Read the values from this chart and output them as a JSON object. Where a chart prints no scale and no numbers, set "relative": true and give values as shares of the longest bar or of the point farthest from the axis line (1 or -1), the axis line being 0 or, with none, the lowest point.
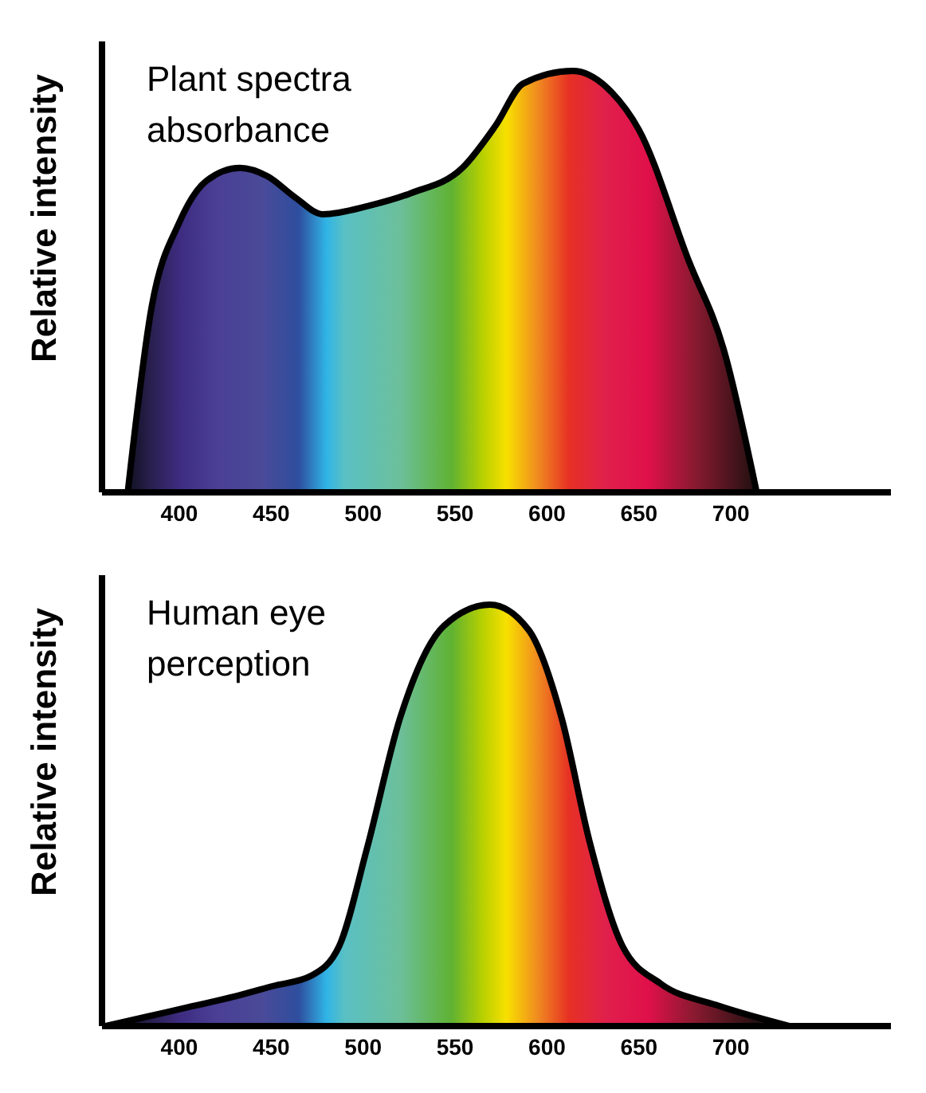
{
  "chart_data": [
    {
      "type": "area",
      "title": "Plant spectra absorbance",
      "ylabel": "Relative intensity",
      "relative": true,
      "xlim": [
        358,
        787
      ],
      "xticks": [
        400,
        450,
        500,
        550,
        600,
        650,
        700
      ],
      "grid": false,
      "legend": false,
      "series": [
        {
          "color": "#000000",
          "x": [
            372,
            385,
            400,
            415,
            433,
            448,
            463,
            478,
            503,
            526,
            554,
            572,
            587,
            614,
            635,
            650,
            677,
            696,
            714
          ],
          "values": [
            0,
            0.44,
            0.64,
            0.74,
            0.77,
            0.75,
            0.7,
            0.66,
            0.68,
            0.71,
            0.77,
            0.87,
            0.97,
            1,
            0.95,
            0.86,
            0.55,
            0.34,
            0
          ]
        }
      ]
    },
    {
      "type": "area",
      "title": "Human eye perception",
      "ylabel": "Relative intensity",
      "relative": true,
      "xlim": [
        358,
        787
      ],
      "xticks": [
        400,
        450,
        500,
        550,
        600,
        650,
        700
      ],
      "grid": false,
      "legend": false,
      "series": [
        {
          "color": "#000000",
          "x": [
            360,
            400,
            430,
            451,
            472,
            487,
            502,
            520,
            544,
            569,
            590,
            608,
            623,
            641,
            662,
            692,
            732
          ],
          "values": [
            0,
            0.04,
            0.07,
            0.095,
            0.12,
            0.19,
            0.42,
            0.73,
            0.95,
            1,
            0.94,
            0.73,
            0.44,
            0.19,
            0.1,
            0.05,
            0
          ]
        }
      ]
    }
  ]
}
